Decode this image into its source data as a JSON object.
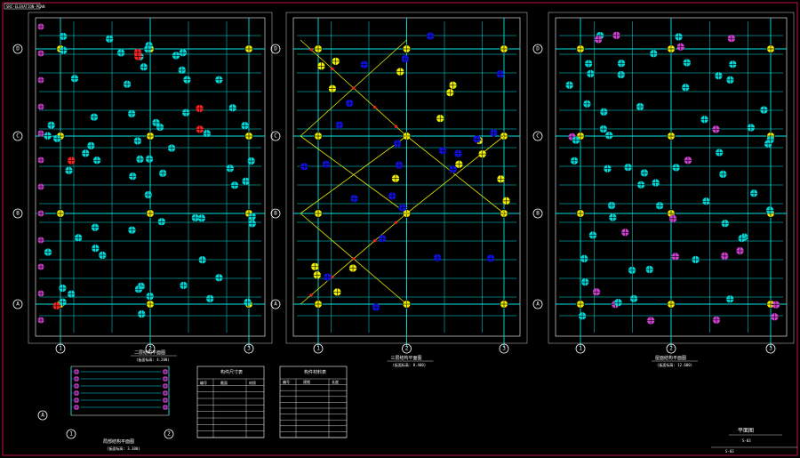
{
  "app": {
    "title_tag": "SRC-ELEVATION-PLAN"
  },
  "colors": {
    "background": "#000000",
    "beam": "#00e5e5",
    "brace": "#e5e500",
    "frame": "#ffffff",
    "border": "#d01040",
    "col_cyan": "#00d8d8",
    "col_yellow": "#f0f000",
    "col_blue": "#1010e0",
    "col_magenta": "#d040d0",
    "col_red": "#ff2020"
  },
  "sheet": {
    "title": "平面图",
    "drawing_no": "S-03"
  },
  "plans": [
    {
      "title": "二层结构平面图",
      "subtitle": "(板面标高: 4.200)"
    },
    {
      "title": "三层结构平面图",
      "subtitle": "(板面标高: 8.400)"
    },
    {
      "title": "屋面结构平面图",
      "subtitle": "(板面标高: 12.600)"
    }
  ],
  "small_plan": {
    "title": "局部结构平面图",
    "subtitle": "(板面标高: 3.300)"
  },
  "grid": {
    "cols": [
      "1",
      "2",
      "3"
    ],
    "rows": [
      "D",
      "C",
      "B",
      "A"
    ]
  },
  "tables": {
    "left": {
      "title": "构件尺寸表",
      "headers": [
        "编号",
        "截面",
        "材质"
      ],
      "rows": 8
    },
    "right": {
      "title": "构件材料表",
      "headers": [
        "编号",
        "规格",
        "长度"
      ],
      "rows": 9
    }
  }
}
